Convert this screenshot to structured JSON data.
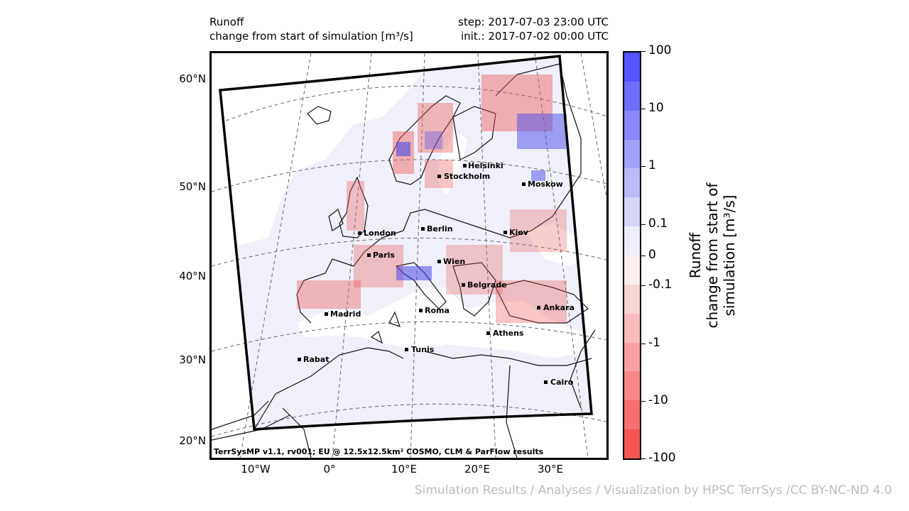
{
  "header": {
    "title_line1": "Runoff",
    "title_line2": "change from start of simulation [m³/s]",
    "step": "step: 2017-07-03 23:00 UTC",
    "init": "init.: 2017-07-02 00:00 UTC"
  },
  "lat_labels": [
    "60°N",
    "50°N",
    "40°N",
    "30°N",
    "20°N"
  ],
  "lon_labels": [
    "10°W",
    "0°",
    "10°E",
    "20°E",
    "30°E"
  ],
  "cities": [
    "Helsinki",
    "Stockholm",
    "Moskow",
    "London",
    "Berlin",
    "Kiev",
    "Paris",
    "Wien",
    "Belgrade",
    "Madrid",
    "Roma",
    "Ankara",
    "Athens",
    "Tunis",
    "Rabat",
    "Cairo"
  ],
  "footer": "TerrSysMP v1.1, rv001; EU @ 12.5x12.5km² COSMO, CLM & ParFlow results",
  "colorbar": {
    "title_line1": "Runoff",
    "title_line2": "change from start of simulation [m³/s]",
    "labels": [
      "100",
      "10",
      "1",
      "0.1",
      "0",
      "-0.1",
      "-1",
      "-10",
      "-100"
    ],
    "colors": [
      "#5555ff",
      "#6e6efb",
      "#8787f8",
      "#a1a1f8",
      "#bbbbf9",
      "#d5d5f9",
      "#eeeefa",
      "#faeeee",
      "#f9d5d5",
      "#f8bbbb",
      "#f8a1a1",
      "#f88787",
      "#f66e6e",
      "#f55555"
    ]
  },
  "credit": "Simulation Results / Analyses / Visualization by HPSC TerrSys /CC BY-NC-ND 4.0"
}
